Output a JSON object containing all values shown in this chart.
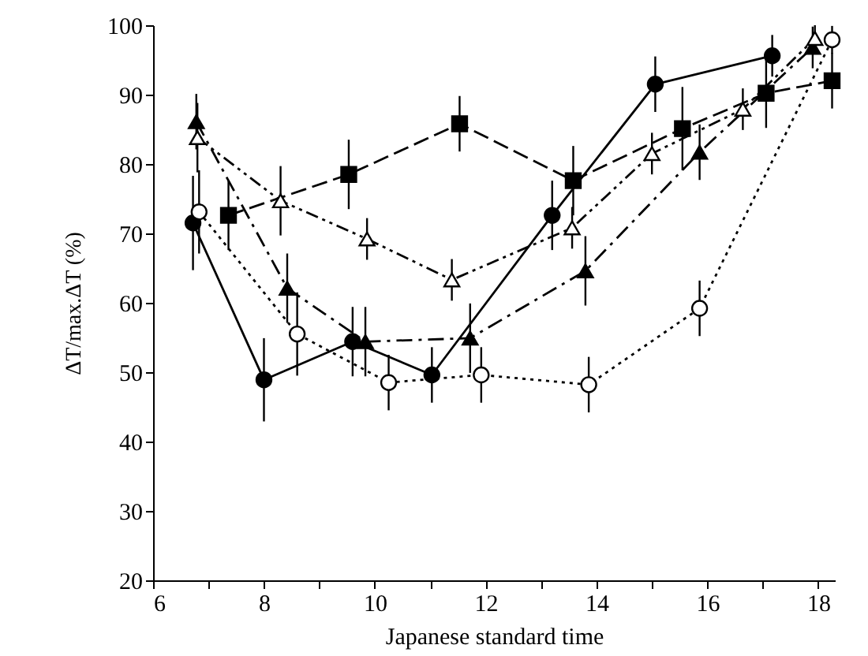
{
  "chart_data": {
    "type": "line",
    "xlabel": "Japanese standard time",
    "ylabel": "ΔT/max.ΔT (%)",
    "xlim": [
      6,
      18.3
    ],
    "ylim": [
      20,
      100
    ],
    "xticks": [
      6,
      {
        "value": 7,
        "label": null
      },
      8,
      {
        "value": 9,
        "label": null
      },
      10,
      {
        "value": 11,
        "label": null
      },
      12,
      {
        "value": 13,
        "label": null
      },
      14,
      {
        "value": 15,
        "label": null
      },
      16,
      {
        "value": 17,
        "label": null
      },
      18
    ],
    "yticks": [
      20,
      30,
      40,
      50,
      60,
      70,
      80,
      90,
      100
    ],
    "grid": false,
    "series": [
      {
        "color": "#000000",
        "marker": "circle",
        "line_style": "solid",
        "x": [
          6.72,
          8.0,
          9.6,
          11.03,
          13.2,
          15.06,
          17.17
        ],
        "values": [
          71.5,
          48.9,
          54.4,
          49.6,
          72.6,
          91.5,
          95.6
        ],
        "errors": [
          6.8,
          6,
          5,
          4,
          5,
          4,
          3
        ]
      },
      {
        "color": "#000000",
        "marker": "square",
        "line_style": "dashed",
        "x": [
          7.36,
          9.53,
          11.53,
          13.58,
          15.55,
          17.06,
          18.25
        ],
        "values": [
          72.6,
          78.5,
          85.8,
          77.6,
          85.1,
          90.2,
          92.0
        ],
        "errors": [
          5,
          5,
          4,
          5,
          6,
          5,
          4
        ]
      },
      {
        "color": "#000000",
        "marker": "triangle",
        "line_style": "dashed",
        "x": [
          6.78,
          8.42,
          9.83,
          11.72,
          13.8,
          15.86,
          17.9
        ],
        "values": [
          86.1,
          62.1,
          54.4,
          54.9,
          64.6,
          81.7,
          96.8
        ],
        "errors": [
          4,
          5,
          5,
          5,
          5,
          4,
          3
        ]
      },
      {
        "color": "#000000",
        "marker": "triangle",
        "line_style": "dashed",
        "x": [
          6.8,
          8.3,
          9.86,
          11.39,
          13.56,
          15.0,
          16.64,
          17.94
        ],
        "values": [
          83.8,
          74.7,
          69.2,
          63.3,
          70.8,
          81.5,
          87.9,
          98.1
        ],
        "errors": [
          5,
          5,
          3,
          3,
          3,
          3,
          3,
          1.9
        ]
      },
      {
        "color": "#000000",
        "marker": "circle",
        "line_style": "dotted",
        "x": [
          6.83,
          8.6,
          10.25,
          11.92,
          13.86,
          15.86,
          18.25
        ],
        "values": [
          73.1,
          55.5,
          48.5,
          49.6,
          48.2,
          59.2,
          97.9
        ],
        "errors": [
          6,
          6,
          4,
          4,
          4,
          4,
          2
        ]
      }
    ]
  }
}
